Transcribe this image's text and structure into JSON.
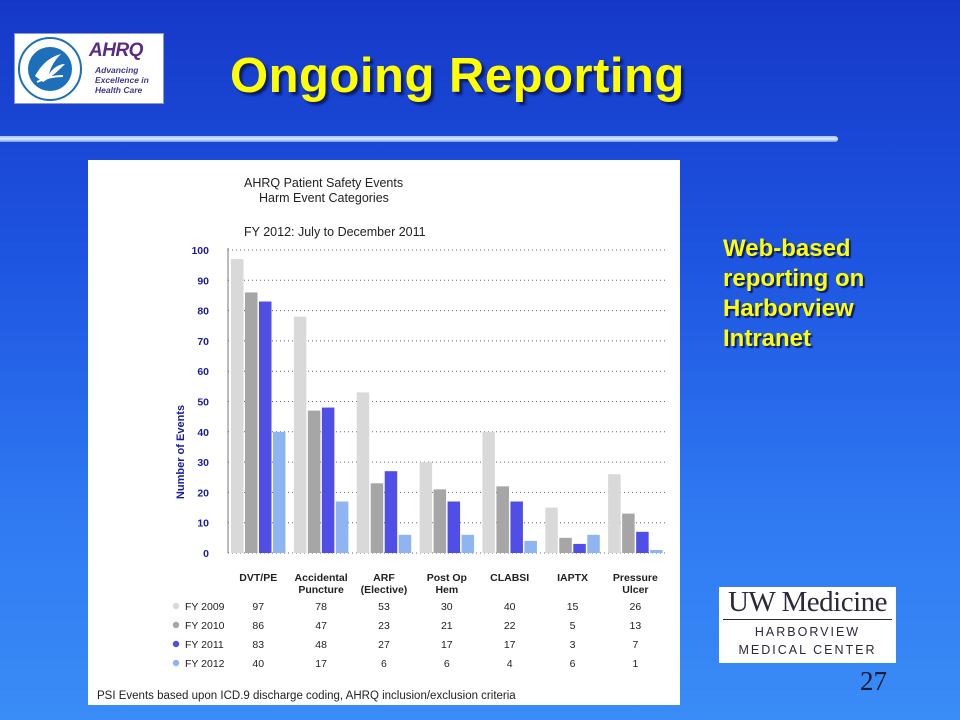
{
  "slide": {
    "title": "Ongoing Reporting",
    "side_note_lines": [
      "Web-based",
      "reporting on",
      "Harborview",
      "Intranet"
    ],
    "page_number": "27"
  },
  "logos": {
    "ahrq_word": "AHRQ",
    "ahrq_tagline_lines": [
      "Advancing",
      "Excellence in",
      "Health Care"
    ],
    "hhs_seal_text": "DEPARTMENT OF HEALTH & HUMAN SERVICES USA",
    "uw_main": "UW Medicine",
    "uw_sub_lines": [
      "HARBORVIEW",
      "MEDICAL CENTER"
    ]
  },
  "chart_data": {
    "type": "bar",
    "title": "AHRQ Patient Safety Events",
    "subtitle": "Harm Event Categories",
    "period_label": "FY 2012: July to December 2011",
    "ylabel": "Number of Events",
    "ylim": [
      0,
      100
    ],
    "yticks": [
      0,
      10,
      20,
      30,
      40,
      50,
      60,
      70,
      80,
      90,
      100
    ],
    "grid": true,
    "categories": [
      [
        "DVT/PE"
      ],
      [
        "Accidental",
        "Puncture"
      ],
      [
        "ARF",
        "(Elective)"
      ],
      [
        "Post Op",
        "Hem"
      ],
      [
        "CLABSI"
      ],
      [
        "IAPTX"
      ],
      [
        "Pressure",
        "Ulcer"
      ]
    ],
    "series": [
      {
        "name": "FY 2009",
        "color": "#d9d9d9",
        "values": [
          97,
          78,
          53,
          30,
          40,
          15,
          26
        ]
      },
      {
        "name": "FY 2010",
        "color": "#a6a6a6",
        "values": [
          86,
          47,
          23,
          21,
          22,
          5,
          13
        ]
      },
      {
        "name": "FY 2011",
        "color": "#4f4fe8",
        "values": [
          83,
          48,
          27,
          17,
          17,
          3,
          7
        ]
      },
      {
        "name": "FY 2012",
        "color": "#8fb4f2",
        "values": [
          40,
          17,
          6,
          6,
          4,
          6,
          1
        ]
      }
    ],
    "footnote": "PSI Events based upon ICD.9 discharge coding, AHRQ inclusion/exclusion criteria"
  },
  "colors": {
    "title_yellow": "#ffff00",
    "axis_label_blue": "#1a1aa8",
    "background_top": "#1638c8",
    "background_bottom": "#3a8cf6"
  }
}
